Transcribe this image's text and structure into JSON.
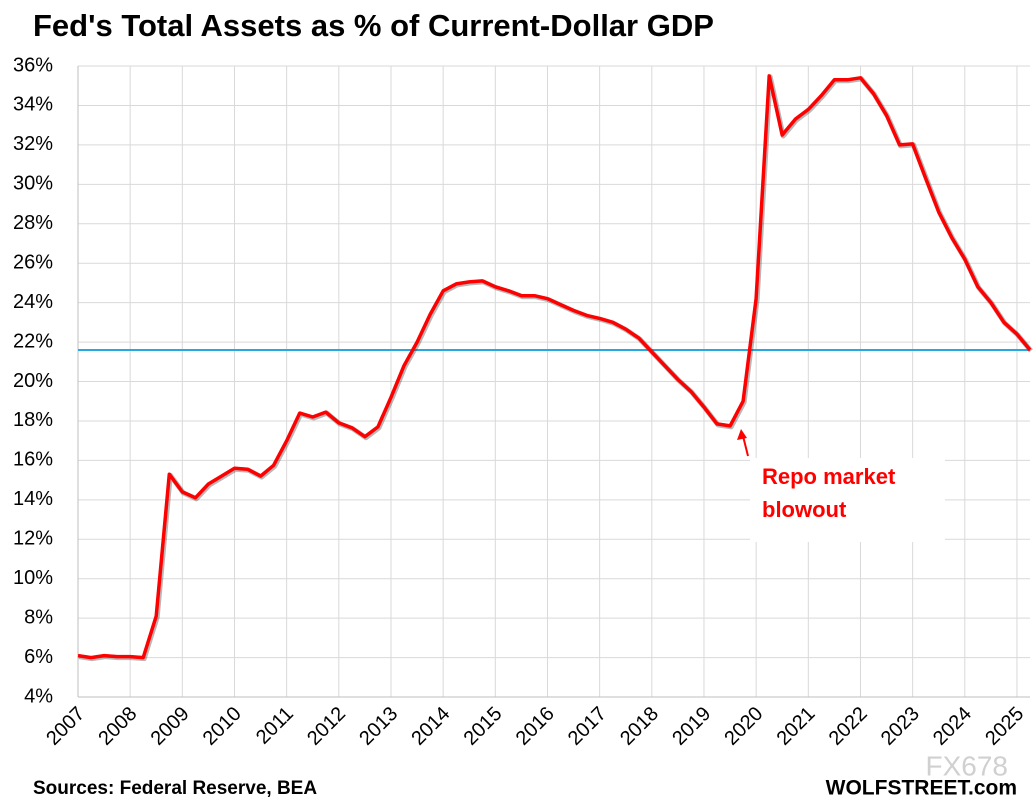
{
  "chart_data": {
    "type": "line",
    "title": "Fed's Total Assets as % of Current-Dollar GDP",
    "color": "#ff0000",
    "x": [
      2007,
      2007.25,
      2007.5,
      2007.75,
      2008,
      2008.25,
      2008.5,
      2008.75,
      2009,
      2009.25,
      2009.5,
      2009.75,
      2010,
      2010.25,
      2010.5,
      2010.75,
      2011,
      2011.25,
      2011.5,
      2011.75,
      2012,
      2012.25,
      2012.5,
      2012.75,
      2013,
      2013.25,
      2013.5,
      2013.75,
      2014,
      2014.25,
      2014.5,
      2014.75,
      2015,
      2015.25,
      2015.5,
      2015.75,
      2016,
      2016.25,
      2016.5,
      2016.75,
      2017,
      2017.25,
      2017.5,
      2017.75,
      2018,
      2018.25,
      2018.5,
      2018.75,
      2019,
      2019.25,
      2019.5,
      2019.75,
      2020,
      2020.25,
      2020.5,
      2020.75,
      2021,
      2021.25,
      2021.5,
      2021.75,
      2022,
      2022.25,
      2022.5,
      2022.75,
      2023,
      2023.25,
      2023.5,
      2023.75,
      2024,
      2024.25,
      2024.5,
      2024.75,
      2025,
      2025.25
    ],
    "values": [
      6.1,
      6.0,
      6.1,
      6.05,
      6.05,
      6.0,
      8.1,
      15.3,
      14.4,
      14.1,
      14.8,
      15.2,
      15.6,
      15.55,
      15.2,
      15.75,
      17.0,
      18.4,
      18.2,
      18.45,
      17.9,
      17.65,
      17.2,
      17.7,
      19.2,
      20.8,
      22.0,
      23.4,
      24.6,
      24.95,
      25.05,
      25.1,
      24.8,
      24.6,
      24.35,
      24.35,
      24.2,
      23.9,
      23.6,
      23.35,
      23.2,
      23.0,
      22.65,
      22.2,
      21.5,
      20.8,
      20.1,
      19.5,
      18.7,
      17.85,
      17.75,
      19.0,
      24.2,
      35.5,
      32.5,
      33.3,
      33.8,
      34.5,
      35.3,
      35.3,
      35.4,
      34.6,
      33.5,
      32.0,
      32.05,
      30.3,
      28.6,
      27.3,
      26.2,
      24.8,
      24.0,
      23.0,
      22.4,
      21.6
    ],
    "xlim": [
      2007,
      2025.25
    ],
    "xticks": [
      2007,
      2008,
      2009,
      2010,
      2011,
      2012,
      2013,
      2014,
      2015,
      2016,
      2017,
      2018,
      2019,
      2020,
      2021,
      2022,
      2023,
      2024,
      2025
    ],
    "ylim": [
      4,
      36
    ],
    "yticks": [
      {
        "value": 4,
        "label": "4%"
      },
      {
        "value": 6,
        "label": "6%"
      },
      {
        "value": 8,
        "label": "8%"
      },
      {
        "value": 10,
        "label": "10%"
      },
      {
        "value": 12,
        "label": "12%"
      },
      {
        "value": 14,
        "label": "14%"
      },
      {
        "value": 16,
        "label": "16%"
      },
      {
        "value": 18,
        "label": "18%"
      },
      {
        "value": 20,
        "label": "20%"
      },
      {
        "value": 22,
        "label": "22%"
      },
      {
        "value": 24,
        "label": "24%"
      },
      {
        "value": 26,
        "label": "26%"
      },
      {
        "value": 28,
        "label": "28%"
      },
      {
        "value": 30,
        "label": "30%"
      },
      {
        "value": 32,
        "label": "32%"
      },
      {
        "value": 34,
        "label": "34%"
      },
      {
        "value": 36,
        "label": "36%"
      }
    ],
    "grid": true,
    "reference_line": {
      "value": 21.6,
      "color": "#29a8e0"
    },
    "annotation": {
      "lines": [
        "Repo market",
        "blowout"
      ],
      "color": "#ff0000"
    },
    "source": "Sources: Federal Reserve, BEA",
    "credit": "WOLFSTREET.com",
    "watermark": "FX678"
  }
}
